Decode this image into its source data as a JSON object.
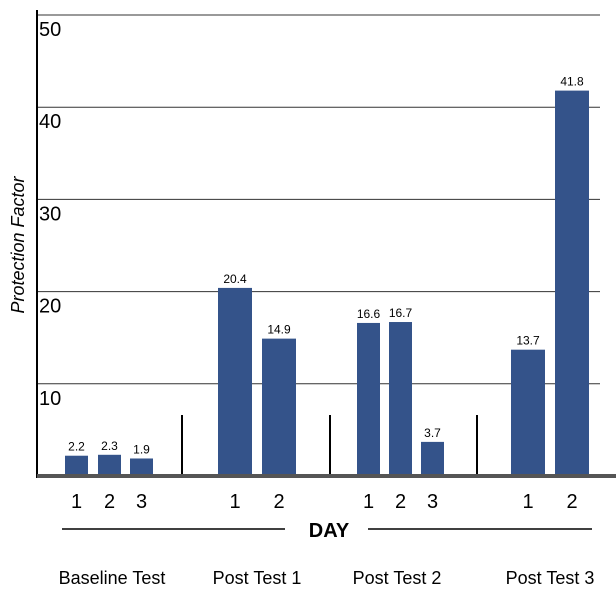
{
  "chart_data": {
    "type": "bar",
    "ylabel": "Protection Factor",
    "xlabel": "DAY",
    "ylim": [
      0,
      50
    ],
    "yticks": [
      "10",
      "20",
      "30",
      "40",
      "50"
    ],
    "grid": true,
    "bar_color": "#34538a",
    "groups": [
      {
        "name": "Baseline Test",
        "days": [
          "1",
          "2",
          "3"
        ],
        "values": [
          2.2,
          2.3,
          1.9
        ],
        "value_labels": [
          "2.2",
          "2.3",
          "1.9"
        ]
      },
      {
        "name": "Post Test 1",
        "days": [
          "1",
          "2"
        ],
        "values": [
          20.4,
          14.9
        ],
        "value_labels": [
          "20.4",
          "14.9"
        ]
      },
      {
        "name": "Post Test 2",
        "days": [
          "1",
          "2",
          "3"
        ],
        "values": [
          16.6,
          16.7,
          3.7
        ],
        "value_labels": [
          "16.6",
          "16.7",
          "3.7"
        ]
      },
      {
        "name": "Post Test 3",
        "days": [
          "1",
          "2"
        ],
        "values": [
          13.7,
          41.8
        ],
        "value_labels": [
          "13.7",
          "41.8"
        ]
      }
    ]
  }
}
